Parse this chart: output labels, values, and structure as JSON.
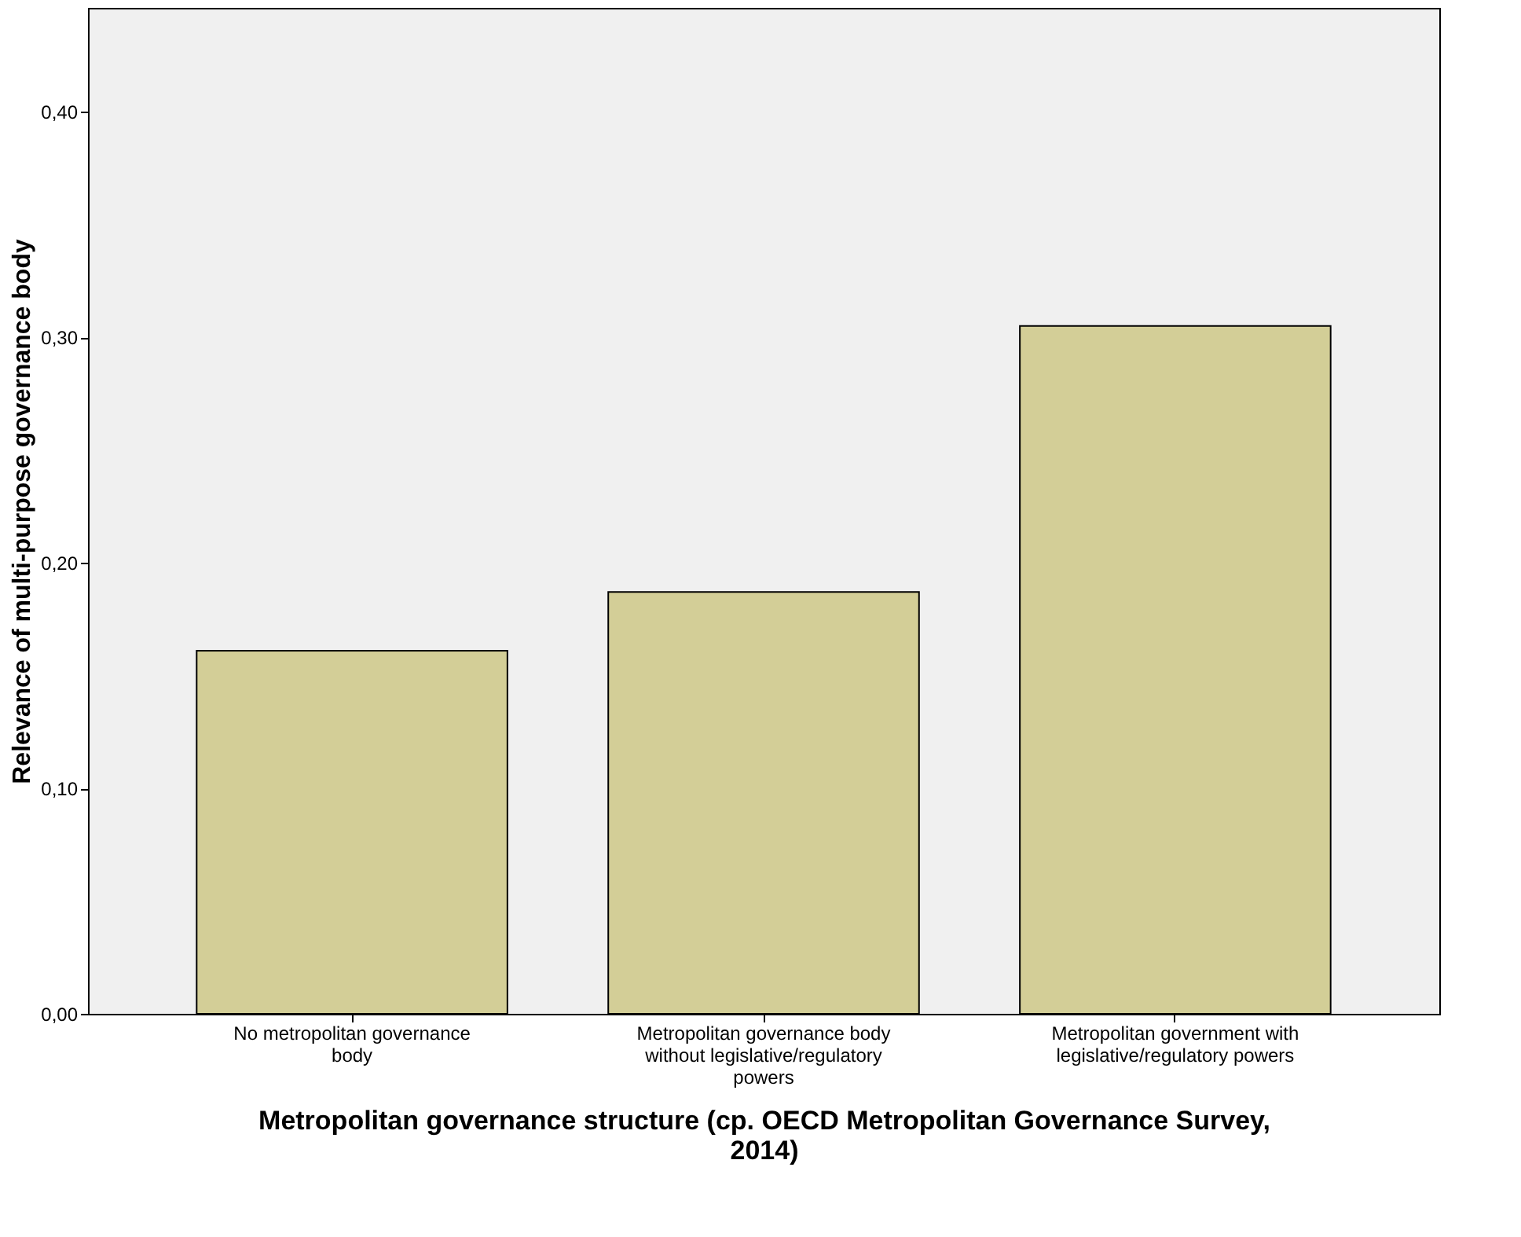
{
  "chart_data": {
    "type": "bar",
    "xlabel": "Metropolitan governance structure (cp. OECD Metropolitan Governance Survey, 2014)",
    "ylabel": "Relevance of multi-purpose governance body",
    "categories": [
      "No metropolitan governance body",
      "Metropolitan governance body without legislative/regulatory powers",
      "Metropolitan government with legislative/regulatory powers"
    ],
    "values": [
      0.161,
      0.187,
      0.305
    ],
    "color": "#d3ce97",
    "ylim": [
      0,
      0.446
    ],
    "yticks": [
      {
        "value": 0,
        "label": "0,00"
      },
      {
        "value": 0.1,
        "label": "0,10"
      },
      {
        "value": 0.2,
        "label": "0,20"
      },
      {
        "value": 0.3,
        "label": "0,30"
      },
      {
        "value": 0.4,
        "label": "0,40"
      }
    ],
    "grid": false
  }
}
